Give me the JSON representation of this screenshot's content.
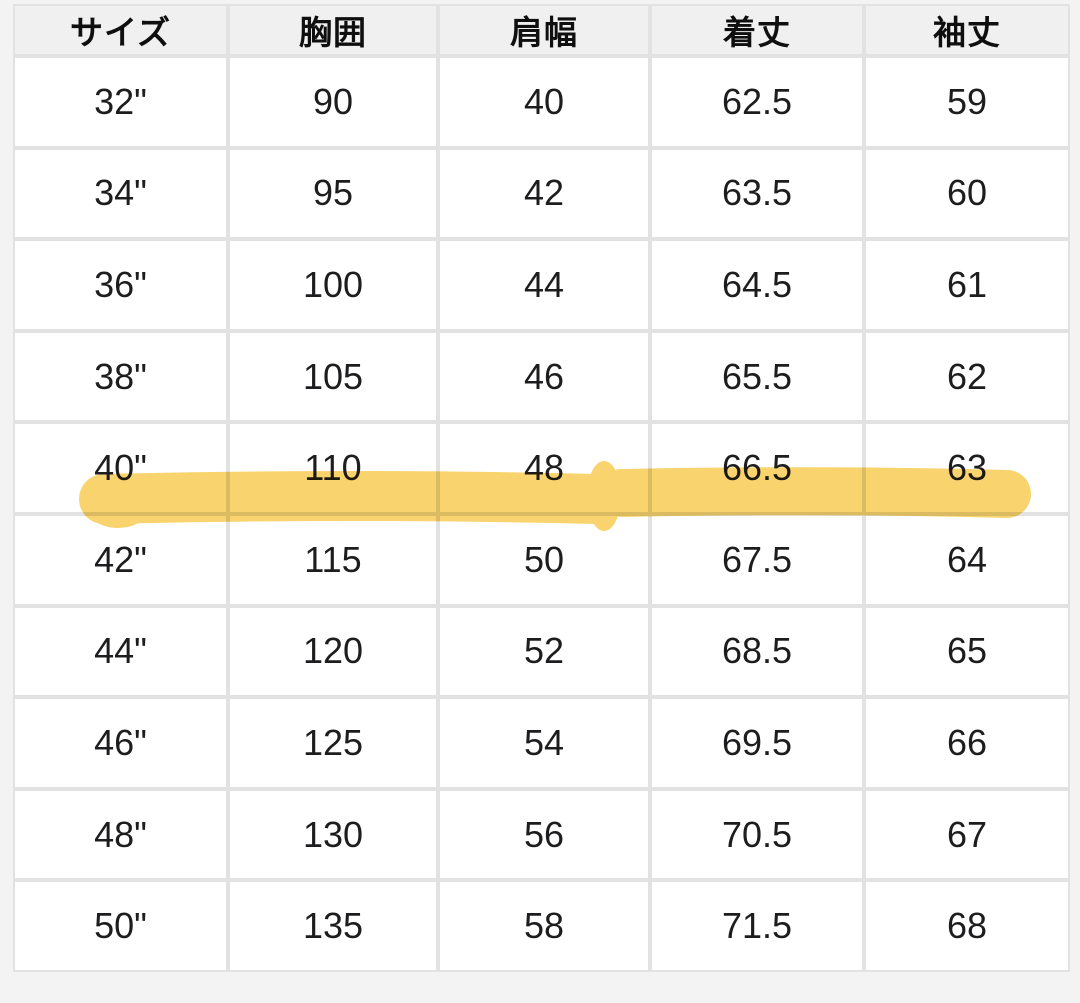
{
  "page": {
    "background": "#f3f3f4"
  },
  "table": {
    "headers": [
      "サイズ",
      "胸囲",
      "肩幅",
      "着丈",
      "袖丈"
    ],
    "rows": [
      [
        "32\"",
        "90",
        "40",
        "62.5",
        "59"
      ],
      [
        "34\"",
        "95",
        "42",
        "63.5",
        "60"
      ],
      [
        "36\"",
        "100",
        "44",
        "64.5",
        "61"
      ],
      [
        "38\"",
        "105",
        "46",
        "65.5",
        "62"
      ],
      [
        "40\"",
        "110",
        "48",
        "66.5",
        "63"
      ],
      [
        "42\"",
        "115",
        "50",
        "67.5",
        "64"
      ],
      [
        "44\"",
        "120",
        "52",
        "68.5",
        "65"
      ],
      [
        "46\"",
        "125",
        "54",
        "69.5",
        "66"
      ],
      [
        "48\"",
        "130",
        "56",
        "70.5",
        "67"
      ],
      [
        "50\"",
        "135",
        "58",
        "71.5",
        "68"
      ]
    ],
    "highlighted_row_index": 4,
    "highlight_color": "#F8D166"
  },
  "colors": {
    "header_background": "#f0f0f1",
    "cell_background": "#ffffff",
    "border": "#e2e2e3",
    "text": "#1d1d1f"
  },
  "chart_data": {
    "type": "table",
    "title": "サイズ表 (size chart, cm)",
    "columns": [
      "サイズ",
      "胸囲",
      "肩幅",
      "着丈",
      "袖丈"
    ],
    "rows": [
      [
        "32\"",
        90,
        40,
        62.5,
        59
      ],
      [
        "34\"",
        95,
        42,
        63.5,
        60
      ],
      [
        "36\"",
        100,
        44,
        64.5,
        61
      ],
      [
        "38\"",
        105,
        46,
        65.5,
        62
      ],
      [
        "40\"",
        110,
        48,
        66.5,
        63
      ],
      [
        "42\"",
        115,
        50,
        67.5,
        64
      ],
      [
        "44\"",
        120,
        52,
        68.5,
        65
      ],
      [
        "46\"",
        125,
        54,
        69.5,
        66
      ],
      [
        "48\"",
        130,
        56,
        70.5,
        67
      ],
      [
        "50\"",
        135,
        58,
        71.5,
        68
      ]
    ],
    "highlighted_row": [
      "40\"",
      110,
      48,
      66.5,
      63
    ],
    "annotation": "Yellow highlighter stroke drawn across the 40\" row"
  }
}
